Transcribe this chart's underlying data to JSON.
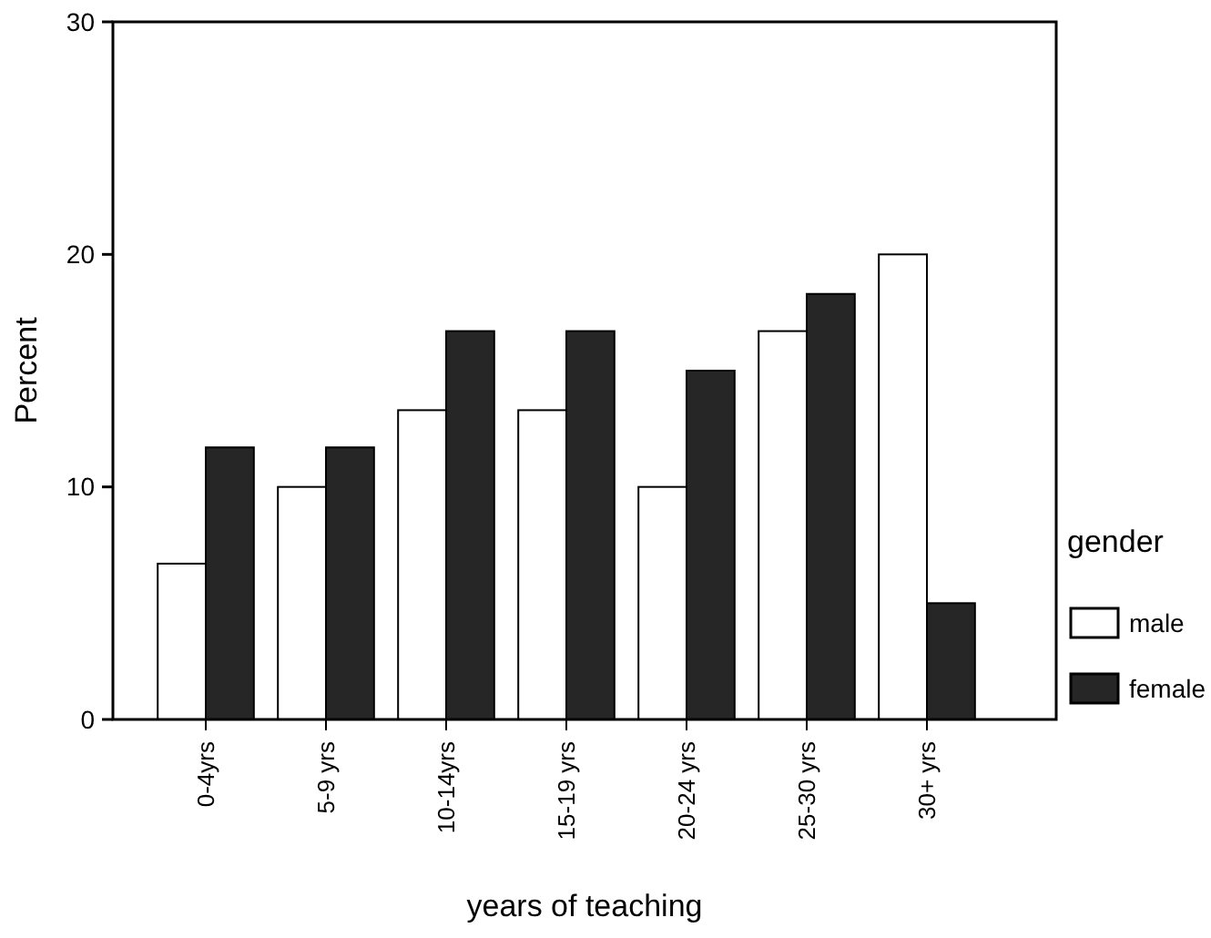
{
  "chart_data": {
    "type": "bar",
    "xlabel": "years of teaching",
    "ylabel": "Percent",
    "legend_title": "gender",
    "categories": [
      "0-4yrs",
      "5-9 yrs",
      "10-14yrs",
      "15-19 yrs",
      "20-24 yrs",
      "25-30 yrs",
      "30+ yrs"
    ],
    "series": [
      {
        "name": "male",
        "color": "#ffffff",
        "values": [
          6.7,
          10,
          13.3,
          13.3,
          10,
          16.7,
          20
        ]
      },
      {
        "name": "female",
        "color": "#262626",
        "values": [
          11.7,
          11.7,
          16.7,
          16.7,
          15,
          18.3,
          5
        ]
      }
    ],
    "ylim": [
      0,
      30
    ],
    "yticks": [
      0,
      10,
      20,
      30
    ],
    "grid": false,
    "legend": "right"
  }
}
